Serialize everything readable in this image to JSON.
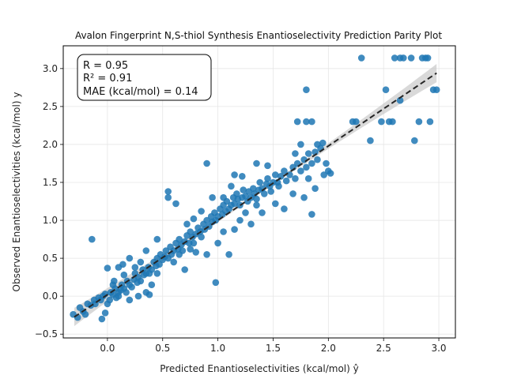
{
  "chart_data": {
    "type": "scatter",
    "title": "Avalon Fingerprint N,S-thiol Synthesis Enantioselectivity Prediction Parity Plot",
    "xlabel": "Predicted Enantioselectivities (kcal/mol) ŷ",
    "ylabel": "Observed Enantioselectivities (kcal/mol) y",
    "xlim": [
      -0.4,
      3.15
    ],
    "ylim": [
      -0.55,
      3.3
    ],
    "xticks": [
      0.0,
      0.5,
      1.0,
      1.5,
      2.0,
      2.5,
      3.0
    ],
    "yticks": [
      -0.5,
      0.0,
      0.5,
      1.0,
      1.5,
      2.0,
      2.5,
      3.0
    ],
    "grid": true,
    "colors": {
      "points": "#1f77b4",
      "fit_line": "#262626",
      "band": "#bfbfbf"
    },
    "stats": {
      "r": "R = 0.95",
      "r2": "R² = 0.91",
      "mae": "MAE (kcal/mol) = 0.14"
    },
    "fit_line": {
      "slope": 0.98,
      "intercept": 0.02,
      "x_range": [
        -0.3,
        2.98
      ],
      "band_halfwidth_end": 0.1
    },
    "points": [
      [
        -0.31,
        -0.24
      ],
      [
        -0.27,
        -0.28
      ],
      [
        -0.25,
        -0.15
      ],
      [
        -0.22,
        -0.2
      ],
      [
        -0.2,
        -0.24
      ],
      [
        -0.18,
        -0.1
      ],
      [
        -0.15,
        -0.12
      ],
      [
        -0.12,
        -0.05
      ],
      [
        -0.11,
        -0.1
      ],
      [
        -0.08,
        -0.02
      ],
      [
        -0.06,
        -0.05
      ],
      [
        -0.04,
        0.0
      ],
      [
        -0.02,
        0.03
      ],
      [
        0.0,
        -0.1
      ],
      [
        0.02,
        -0.05
      ],
      [
        0.03,
        0.05
      ],
      [
        0.05,
        0.02
      ],
      [
        0.07,
        0.1
      ],
      [
        0.08,
        -0.02
      ],
      [
        0.1,
        0.05
      ],
      [
        0.12,
        0.08
      ],
      [
        0.13,
        0.15
      ],
      [
        0.15,
        0.1
      ],
      [
        0.17,
        0.05
      ],
      [
        0.18,
        0.2
      ],
      [
        0.2,
        0.15
      ],
      [
        0.22,
        0.12
      ],
      [
        0.24,
        0.22
      ],
      [
        0.25,
        0.3
      ],
      [
        0.27,
        0.18
      ],
      [
        0.28,
        0.25
      ],
      [
        0.3,
        0.2
      ],
      [
        0.32,
        0.35
      ],
      [
        0.33,
        0.28
      ],
      [
        0.35,
        0.3
      ],
      [
        0.37,
        0.38
      ],
      [
        0.38,
        0.3
      ],
      [
        0.4,
        0.35
      ],
      [
        0.42,
        0.45
      ],
      [
        0.44,
        0.4
      ],
      [
        0.45,
        0.5
      ],
      [
        0.47,
        0.42
      ],
      [
        0.48,
        0.55
      ],
      [
        0.5,
        0.48
      ],
      [
        0.52,
        0.52
      ],
      [
        0.53,
        0.6
      ],
      [
        0.55,
        0.5
      ],
      [
        0.57,
        0.65
      ],
      [
        0.58,
        0.55
      ],
      [
        0.6,
        0.6
      ],
      [
        0.62,
        0.7
      ],
      [
        0.64,
        0.62
      ],
      [
        0.65,
        0.75
      ],
      [
        0.67,
        0.68
      ],
      [
        0.68,
        0.6
      ],
      [
        0.7,
        0.72
      ],
      [
        0.72,
        0.8
      ],
      [
        0.74,
        0.7
      ],
      [
        0.75,
        0.85
      ],
      [
        0.77,
        0.78
      ],
      [
        0.78,
        0.7
      ],
      [
        0.8,
        0.82
      ],
      [
        0.82,
        0.9
      ],
      [
        0.84,
        0.85
      ],
      [
        0.85,
        0.78
      ],
      [
        0.87,
        0.95
      ],
      [
        0.88,
        0.88
      ],
      [
        0.9,
        1.0
      ],
      [
        0.92,
        0.92
      ],
      [
        0.94,
        1.05
      ],
      [
        0.95,
        0.98
      ],
      [
        0.97,
        1.1
      ],
      [
        0.98,
        1.0
      ],
      [
        1.0,
        1.05
      ],
      [
        1.02,
        1.15
      ],
      [
        1.04,
        1.08
      ],
      [
        1.05,
        1.2
      ],
      [
        1.07,
        1.12
      ],
      [
        1.08,
        1.25
      ],
      [
        1.1,
        1.15
      ],
      [
        1.12,
        1.2
      ],
      [
        1.14,
        1.3
      ],
      [
        1.15,
        1.22
      ],
      [
        1.17,
        1.35
      ],
      [
        1.18,
        1.28
      ],
      [
        1.2,
        1.2
      ],
      [
        1.22,
        1.3
      ],
      [
        1.23,
        1.4
      ],
      [
        1.25,
        1.32
      ],
      [
        1.27,
        1.25
      ],
      [
        1.28,
        1.38
      ],
      [
        1.3,
        1.3
      ],
      [
        1.32,
        1.42
      ],
      [
        1.33,
        1.35
      ],
      [
        1.35,
        1.28
      ],
      [
        1.37,
        1.4
      ],
      [
        1.38,
        1.5
      ],
      [
        1.4,
        1.42
      ],
      [
        1.42,
        1.35
      ],
      [
        1.44,
        1.48
      ],
      [
        1.45,
        1.55
      ],
      [
        1.47,
        1.45
      ],
      [
        1.48,
        1.38
      ],
      [
        1.5,
        1.5
      ],
      [
        1.52,
        1.6
      ],
      [
        1.54,
        1.5
      ],
      [
        1.55,
        1.45
      ],
      [
        1.57,
        1.58
      ],
      [
        1.6,
        1.65
      ],
      [
        1.62,
        1.52
      ],
      [
        1.65,
        1.6
      ],
      [
        1.68,
        1.7
      ],
      [
        1.7,
        1.55
      ],
      [
        1.72,
        1.75
      ],
      [
        1.75,
        1.65
      ],
      [
        1.78,
        1.8
      ],
      [
        1.8,
        1.7
      ],
      [
        1.82,
        1.88
      ],
      [
        1.85,
        1.75
      ],
      [
        1.88,
        1.9
      ],
      [
        1.9,
        1.8
      ],
      [
        1.93,
        1.95
      ],
      [
        1.96,
        1.6
      ],
      [
        2.0,
        1.65
      ],
      [
        2.02,
        1.62
      ],
      [
        0.55,
        1.38
      ],
      [
        0.55,
        1.3
      ],
      [
        0.62,
        1.22
      ],
      [
        0.9,
        1.75
      ],
      [
        0.98,
        0.18
      ],
      [
        0.1,
        0.38
      ],
      [
        0.0,
        0.37
      ],
      [
        -0.14,
        0.75
      ],
      [
        0.06,
        0.2
      ],
      [
        0.14,
        0.42
      ],
      [
        0.38,
        0.02
      ],
      [
        0.28,
        0.0
      ],
      [
        0.4,
        0.15
      ],
      [
        0.45,
        0.3
      ],
      [
        0.7,
        0.35
      ],
      [
        0.9,
        0.55
      ],
      [
        1.1,
        0.55
      ],
      [
        1.0,
        0.7
      ],
      [
        1.05,
        0.85
      ],
      [
        1.15,
        1.6
      ],
      [
        1.22,
        1.58
      ],
      [
        1.35,
        1.75
      ],
      [
        1.45,
        1.72
      ],
      [
        1.52,
        1.22
      ],
      [
        1.6,
        1.15
      ],
      [
        1.68,
        1.35
      ],
      [
        1.78,
        1.3
      ],
      [
        1.82,
        1.55
      ],
      [
        1.85,
        1.08
      ],
      [
        1.88,
        1.42
      ],
      [
        1.7,
        1.88
      ],
      [
        1.72,
        2.3
      ],
      [
        1.8,
        2.3
      ],
      [
        1.85,
        2.3
      ],
      [
        1.9,
        2.0
      ],
      [
        1.95,
        2.02
      ],
      [
        1.8,
        2.72
      ],
      [
        1.75,
        2.0
      ],
      [
        2.25,
        2.3
      ],
      [
        2.3,
        3.14
      ],
      [
        2.38,
        2.05
      ],
      [
        2.48,
        2.3
      ],
      [
        2.52,
        2.72
      ],
      [
        2.55,
        2.3
      ],
      [
        2.58,
        2.3
      ],
      [
        2.6,
        3.14
      ],
      [
        2.65,
        3.14
      ],
      [
        2.68,
        3.14
      ],
      [
        2.75,
        3.14
      ],
      [
        2.78,
        2.05
      ],
      [
        2.82,
        2.3
      ],
      [
        2.85,
        3.14
      ],
      [
        2.88,
        3.14
      ],
      [
        2.9,
        3.14
      ],
      [
        2.92,
        2.3
      ],
      [
        2.95,
        2.72
      ],
      [
        2.98,
        2.72
      ],
      [
        2.65,
        2.58
      ],
      [
        2.22,
        2.3
      ],
      [
        1.98,
        1.75
      ],
      [
        1.25,
        1.1
      ],
      [
        1.3,
        0.95
      ],
      [
        1.2,
        1.0
      ],
      [
        1.15,
        0.88
      ],
      [
        1.35,
        1.2
      ],
      [
        1.4,
        1.1
      ],
      [
        0.6,
        0.45
      ],
      [
        0.65,
        0.55
      ],
      [
        0.75,
        0.62
      ],
      [
        0.8,
        0.58
      ],
      [
        0.72,
        0.95
      ],
      [
        0.78,
        1.02
      ],
      [
        0.85,
        1.12
      ],
      [
        0.95,
        1.3
      ],
      [
        1.05,
        1.3
      ],
      [
        1.12,
        1.45
      ],
      [
        0.35,
        0.6
      ],
      [
        0.45,
        0.75
      ],
      [
        0.2,
        0.5
      ],
      [
        0.25,
        0.38
      ],
      [
        0.3,
        0.45
      ],
      [
        0.15,
        0.28
      ],
      [
        0.05,
        0.15
      ],
      [
        0.1,
        0.0
      ],
      [
        -0.05,
        -0.3
      ],
      [
        -0.02,
        -0.22
      ],
      [
        0.2,
        -0.05
      ],
      [
        0.35,
        0.05
      ]
    ]
  }
}
